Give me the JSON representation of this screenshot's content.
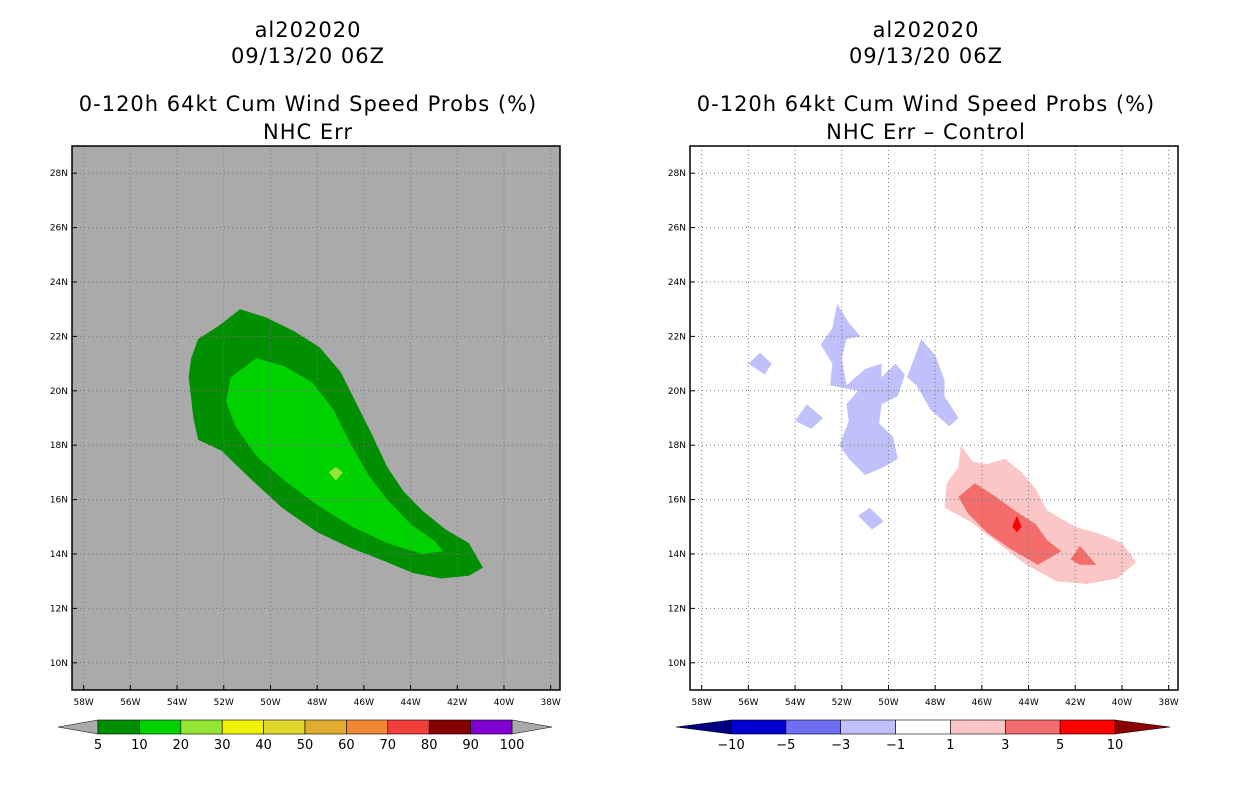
{
  "chart_data": [
    {
      "type": "contour_map",
      "title": "al202020",
      "subtitle": "09/13/20 06Z",
      "panel_title": "0-120h 64kt Cum Wind Speed Probs (%)",
      "panel_subtitle": "NHC Err",
      "x_ticks": [
        "58W",
        "56W",
        "54W",
        "52W",
        "50W",
        "48W",
        "46W",
        "44W",
        "42W",
        "40W",
        "38W"
      ],
      "y_ticks": [
        "28N",
        "26N",
        "24N",
        "22N",
        "20N",
        "18N",
        "16N",
        "14N",
        "12N",
        "10N"
      ],
      "xlim": [
        -58.5,
        -37.6
      ],
      "ylim": [
        9.0,
        29.0
      ],
      "background_color": "#aaaaaa",
      "colorbar": {
        "levels": [
          "5",
          "10",
          "20",
          "30",
          "40",
          "50",
          "60",
          "70",
          "80",
          "90",
          "100"
        ],
        "colors": [
          "#008f00",
          "#00d200",
          "#95e533",
          "#f2f200",
          "#dfd52b",
          "#e1ad2e",
          "#f18733",
          "#f1403c",
          "#840000",
          "#8000d2"
        ],
        "end_colors": [
          "#aaaaaa",
          "#aaaaaa"
        ]
      },
      "contours": [
        {
          "level": "5-10",
          "color": "#008f00",
          "outline": [
            [
              -53.1,
              21.9
            ],
            [
              -52.2,
              22.4
            ],
            [
              -51.3,
              23.0
            ],
            [
              -50.2,
              22.7
            ],
            [
              -49.0,
              22.2
            ],
            [
              -47.9,
              21.6
            ],
            [
              -47.0,
              20.7
            ],
            [
              -46.3,
              19.5
            ],
            [
              -45.6,
              18.3
            ],
            [
              -45.0,
              17.2
            ],
            [
              -44.3,
              16.3
            ],
            [
              -43.5,
              15.6
            ],
            [
              -42.5,
              14.9
            ],
            [
              -41.5,
              14.4
            ],
            [
              -40.9,
              13.5
            ],
            [
              -41.5,
              13.2
            ],
            [
              -42.7,
              13.1
            ],
            [
              -43.9,
              13.3
            ],
            [
              -45.0,
              13.7
            ],
            [
              -46.5,
              14.2
            ],
            [
              -48.0,
              14.8
            ],
            [
              -49.5,
              15.7
            ],
            [
              -50.9,
              16.8
            ],
            [
              -52.1,
              17.8
            ],
            [
              -53.1,
              18.2
            ],
            [
              -53.3,
              19.0
            ],
            [
              -53.5,
              20.5
            ],
            [
              -53.4,
              21.2
            ]
          ]
        },
        {
          "level": "10-20",
          "color": "#00d200",
          "outline": [
            [
              -51.7,
              20.5
            ],
            [
              -50.6,
              21.2
            ],
            [
              -49.4,
              20.9
            ],
            [
              -48.2,
              20.3
            ],
            [
              -47.3,
              19.3
            ],
            [
              -46.6,
              18.1
            ],
            [
              -45.8,
              16.9
            ],
            [
              -45.0,
              16.0
            ],
            [
              -44.0,
              15.1
            ],
            [
              -43.0,
              14.5
            ],
            [
              -42.6,
              14.1
            ],
            [
              -43.5,
              14.0
            ],
            [
              -45.0,
              14.4
            ],
            [
              -46.5,
              15.0
            ],
            [
              -48.0,
              15.8
            ],
            [
              -49.4,
              16.7
            ],
            [
              -50.6,
              17.6
            ],
            [
              -51.5,
              18.7
            ],
            [
              -51.9,
              19.6
            ]
          ]
        },
        {
          "level": "20-30",
          "color": "#95e533",
          "outline": [
            [
              -47.2,
              17.2
            ],
            [
              -46.9,
              17.0
            ],
            [
              -47.2,
              16.7
            ],
            [
              -47.5,
              17.0
            ]
          ]
        }
      ]
    },
    {
      "type": "contour_map",
      "title": "al202020",
      "subtitle": "09/13/20 06Z",
      "panel_title": "0-120h 64kt Cum Wind Speed Probs (%)",
      "panel_subtitle": "NHC Err – Control",
      "x_ticks": [
        "58W",
        "56W",
        "54W",
        "52W",
        "50W",
        "48W",
        "46W",
        "44W",
        "42W",
        "40W",
        "38W"
      ],
      "y_ticks": [
        "28N",
        "26N",
        "24N",
        "22N",
        "20N",
        "18N",
        "16N",
        "14N",
        "12N",
        "10N"
      ],
      "xlim": [
        -58.5,
        -37.6
      ],
      "ylim": [
        9.0,
        29.0
      ],
      "background_color": "#ffffff",
      "colorbar": {
        "levels": [
          "−10",
          "−5",
          "−3",
          "−1",
          "1",
          "3",
          "5",
          "10"
        ],
        "colors": [
          "#0000d2",
          "#6e6ef2",
          "#c0c0fa",
          "#ffffff",
          "#fbc6c6",
          "#f56c6c",
          "#ff0000"
        ],
        "end_colors": [
          "#000080",
          "#8b0000"
        ]
      },
      "contours": [
        {
          "level": "-3 to -1",
          "color": "#c0c0fa",
          "outline": [
            [
              -52.2,
              23.2
            ],
            [
              -51.7,
              22.5
            ],
            [
              -51.2,
              22.0
            ],
            [
              -51.8,
              21.9
            ],
            [
              -52.0,
              21.2
            ],
            [
              -51.8,
              20.2
            ],
            [
              -51.0,
              20.8
            ],
            [
              -50.3,
              21.0
            ],
            [
              -50.3,
              20.5
            ],
            [
              -49.7,
              21.0
            ],
            [
              -49.3,
              20.6
            ],
            [
              -49.6,
              19.8
            ],
            [
              -50.3,
              19.5
            ],
            [
              -50.4,
              18.8
            ],
            [
              -49.8,
              18.3
            ],
            [
              -49.6,
              17.5
            ],
            [
              -50.2,
              17.2
            ],
            [
              -51.0,
              16.9
            ],
            [
              -51.7,
              17.5
            ],
            [
              -52.1,
              18.0
            ],
            [
              -51.7,
              18.9
            ],
            [
              -51.8,
              19.5
            ],
            [
              -51.3,
              20.0
            ],
            [
              -52.5,
              20.2
            ],
            [
              -52.4,
              21.0
            ],
            [
              -52.9,
              21.7
            ],
            [
              -52.4,
              22.3
            ]
          ]
        },
        {
          "level": "-3 to -1",
          "color": "#c0c0fa",
          "outline": [
            [
              -48.6,
              21.9
            ],
            [
              -48.0,
              21.3
            ],
            [
              -47.6,
              20.4
            ],
            [
              -47.6,
              19.8
            ],
            [
              -47.0,
              19.0
            ],
            [
              -47.4,
              18.7
            ],
            [
              -48.2,
              19.3
            ],
            [
              -48.8,
              20.2
            ],
            [
              -49.2,
              20.5
            ],
            [
              -48.9,
              21.2
            ]
          ]
        },
        {
          "level": "-3 to -1",
          "color": "#c0c0fa",
          "outline": [
            [
              -55.5,
              21.4
            ],
            [
              -55.0,
              21.0
            ],
            [
              -55.3,
              20.6
            ],
            [
              -56.0,
              21.0
            ]
          ]
        },
        {
          "level": "-3 to -1",
          "color": "#c0c0fa",
          "outline": [
            [
              -53.5,
              19.5
            ],
            [
              -52.8,
              19.0
            ],
            [
              -53.3,
              18.6
            ],
            [
              -54.0,
              18.9
            ]
          ]
        },
        {
          "level": "-3 to -1",
          "color": "#c0c0fa",
          "outline": [
            [
              -50.8,
              15.7
            ],
            [
              -50.2,
              15.2
            ],
            [
              -50.7,
              14.9
            ],
            [
              -51.3,
              15.4
            ]
          ]
        },
        {
          "level": "1 to 3",
          "color": "#fbc6c6",
          "outline": [
            [
              -46.9,
              18.0
            ],
            [
              -46.4,
              17.4
            ],
            [
              -45.8,
              17.3
            ],
            [
              -45.0,
              17.5
            ],
            [
              -44.3,
              17.0
            ],
            [
              -43.7,
              16.4
            ],
            [
              -43.2,
              15.6
            ],
            [
              -42.0,
              15.0
            ],
            [
              -40.8,
              14.7
            ],
            [
              -40.0,
              14.4
            ],
            [
              -39.4,
              13.7
            ],
            [
              -40.2,
              13.1
            ],
            [
              -41.5,
              12.9
            ],
            [
              -42.8,
              13.0
            ],
            [
              -44.1,
              13.6
            ],
            [
              -45.3,
              14.4
            ],
            [
              -46.5,
              15.2
            ],
            [
              -47.6,
              15.7
            ],
            [
              -47.5,
              16.6
            ],
            [
              -47.0,
              17.2
            ]
          ]
        },
        {
          "level": "3 to 5",
          "color": "#f56c6c",
          "outline": [
            [
              -46.3,
              16.6
            ],
            [
              -45.4,
              16.1
            ],
            [
              -44.6,
              15.6
            ],
            [
              -43.7,
              15.1
            ],
            [
              -43.2,
              14.5
            ],
            [
              -42.6,
              14.1
            ],
            [
              -43.6,
              13.6
            ],
            [
              -44.8,
              14.2
            ],
            [
              -45.8,
              14.8
            ],
            [
              -46.6,
              15.5
            ],
            [
              -47.0,
              16.1
            ]
          ]
        },
        {
          "level": "3 to 5",
          "color": "#f56c6c",
          "outline": [
            [
              -41.8,
              14.3
            ],
            [
              -41.1,
              13.6
            ],
            [
              -41.8,
              13.6
            ],
            [
              -42.2,
              13.8
            ]
          ]
        },
        {
          "level": "5 to 10",
          "color": "#ff0000",
          "outline": [
            [
              -44.5,
              15.4
            ],
            [
              -44.3,
              15.0
            ],
            [
              -44.5,
              14.8
            ],
            [
              -44.7,
              15.0
            ]
          ]
        }
      ]
    }
  ]
}
